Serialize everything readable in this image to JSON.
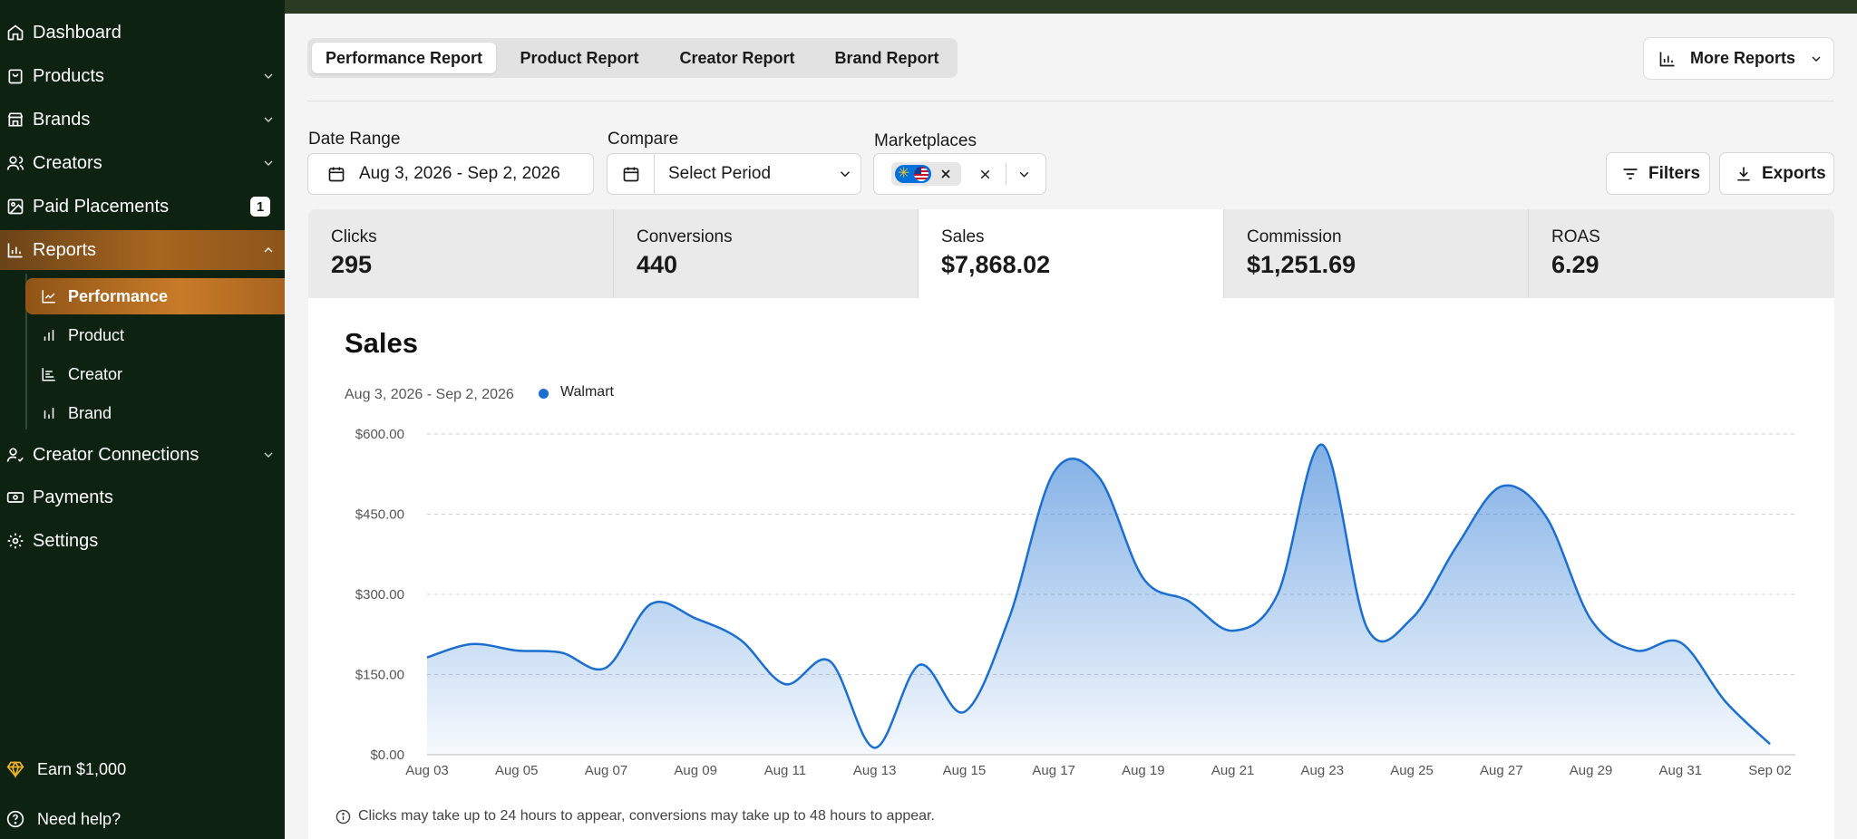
{
  "sidebar": {
    "items": [
      {
        "label": "Dashboard",
        "icon": "home-icon"
      },
      {
        "label": "Products",
        "icon": "shopping-bag-icon"
      },
      {
        "label": "Brands",
        "icon": "store-icon"
      },
      {
        "label": "Creators",
        "icon": "users-icon"
      },
      {
        "label": "Paid Placements",
        "icon": "image-icon",
        "badge": "1"
      },
      {
        "label": "Reports",
        "icon": "bar-chart-icon"
      }
    ],
    "sub_items": [
      {
        "label": "Performance",
        "icon": "line-chart-icon"
      },
      {
        "label": "Product",
        "icon": "bar-chart-icon"
      },
      {
        "label": "Creator",
        "icon": "bar-chart-horizontal-icon"
      },
      {
        "label": "Brand",
        "icon": "bar-chart-icon"
      }
    ],
    "after_items": [
      {
        "label": "Creator Connections",
        "icon": "user-check-icon"
      },
      {
        "label": "Payments",
        "icon": "banknote-icon"
      },
      {
        "label": "Settings",
        "icon": "gear-icon"
      }
    ],
    "earn": "Earn $1,000",
    "help": "Need help?"
  },
  "tabs": [
    "Performance Report",
    "Product Report",
    "Creator Report",
    "Brand Report"
  ],
  "more_reports": "More Reports",
  "filters": {
    "date_range_label": "Date Range",
    "date_range_value": "Aug 3, 2026 - Sep 2, 2026",
    "compare_label": "Compare",
    "compare_value": "Select Period",
    "marketplaces_label": "Marketplaces",
    "filters_btn": "Filters",
    "exports_btn": "Exports"
  },
  "metrics": [
    {
      "label": "Clicks",
      "value": "295"
    },
    {
      "label": "Conversions",
      "value": "440"
    },
    {
      "label": "Sales",
      "value": "$7,868.02"
    },
    {
      "label": "Commission",
      "value": "$1,251.69"
    },
    {
      "label": "ROAS",
      "value": "6.29"
    }
  ],
  "colors": {
    "sidebar_bg": "#0d2210",
    "accent": "#a8661f",
    "series": "#1a6fd1"
  },
  "chart_data": {
    "type": "area",
    "title": "Sales",
    "date_range": "Aug 3, 2026 - Sep 2, 2026",
    "legend": [
      {
        "name": "Walmart",
        "color": "#1a6fd1"
      }
    ],
    "legend_position": "top-left",
    "y_ticks": [
      "$0.00",
      "$150.00",
      "$300.00",
      "$450.00",
      "$600.00"
    ],
    "ylim": [
      0,
      600
    ],
    "grid": true,
    "x_ticks": [
      "Aug 03",
      "Aug 05",
      "Aug 07",
      "Aug 09",
      "Aug 11",
      "Aug 13",
      "Aug 15",
      "Aug 17",
      "Aug 19",
      "Aug 21",
      "Aug 23",
      "Aug 25",
      "Aug 27",
      "Aug 29",
      "Aug 31",
      "Sep 02"
    ],
    "series": [
      {
        "name": "Walmart",
        "x": [
          "Aug 03",
          "Aug 04",
          "Aug 05",
          "Aug 06",
          "Aug 07",
          "Aug 08",
          "Aug 09",
          "Aug 10",
          "Aug 11",
          "Aug 12",
          "Aug 13",
          "Aug 14",
          "Aug 15",
          "Aug 16",
          "Aug 17",
          "Aug 18",
          "Aug 19",
          "Aug 20",
          "Aug 21",
          "Aug 22",
          "Aug 23",
          "Aug 24",
          "Aug 25",
          "Aug 26",
          "Aug 27",
          "Aug 28",
          "Aug 29",
          "Aug 30",
          "Aug 31",
          "Sep 01",
          "Sep 02"
        ],
        "values": [
          182,
          207,
          195,
          191,
          163,
          282,
          255,
          215,
          132,
          175,
          13,
          168,
          80,
          255,
          528,
          520,
          330,
          288,
          232,
          300,
          580,
          237,
          255,
          390,
          502,
          445,
          253,
          195,
          210,
          100,
          20
        ]
      }
    ]
  },
  "note": "Clicks may take up to 24 hours to appear, conversions may take up to 48 hours to appear."
}
